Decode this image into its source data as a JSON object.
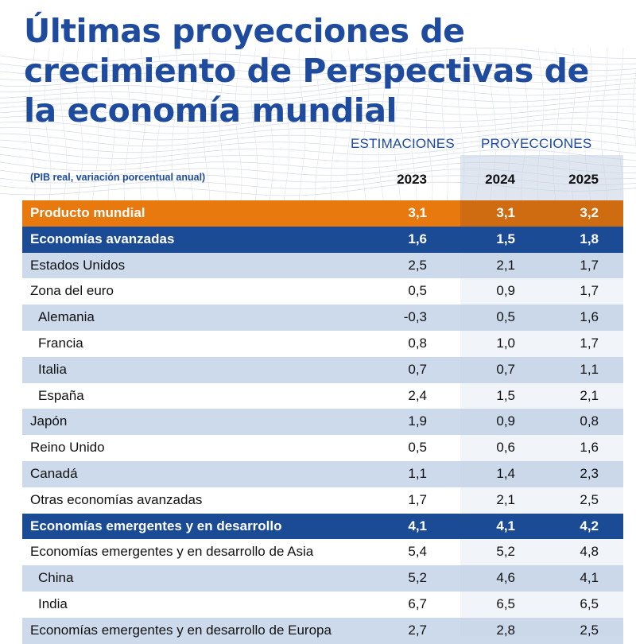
{
  "title": "Últimas proyecciones de crecimiento de Perspectivas de la economía mundial",
  "column_groups": {
    "estimates": "ESTIMACIONES",
    "projections": "PROYECCIONES"
  },
  "units_label": "(PIB real, variación porcentual anual)",
  "colors": {
    "title": "#1e4b9d",
    "world_row": "#e8790e",
    "group_row": "#1b4b95",
    "band": "#c8d6e9"
  },
  "chart_data": {
    "type": "table",
    "title": "Últimas proyecciones de crecimiento de Perspectivas de la economía mundial",
    "subtitle": "(PIB real, variación porcentual anual)",
    "columns": [
      "2023",
      "2024",
      "2025"
    ],
    "rows": [
      {
        "label": "Producto mundial",
        "values": [
          "3,1",
          "3,1",
          "3,2"
        ]
      },
      {
        "label": "Economías avanzadas",
        "values": [
          "1,6",
          "1,5",
          "1,8"
        ]
      },
      {
        "label": "Estados Unidos",
        "values": [
          "2,5",
          "2,1",
          "1,7"
        ]
      },
      {
        "label": "Zona del euro",
        "values": [
          "0,5",
          "0,9",
          "1,7"
        ]
      },
      {
        "label": "Alemania",
        "values": [
          "-0,3",
          "0,5",
          "1,6"
        ]
      },
      {
        "label": "Francia",
        "values": [
          "0,8",
          "1,0",
          "1,7"
        ]
      },
      {
        "label": "Italia",
        "values": [
          "0,7",
          "0,7",
          "1,1"
        ]
      },
      {
        "label": "España",
        "values": [
          "2,4",
          "1,5",
          "2,1"
        ]
      },
      {
        "label": "Japón",
        "values": [
          "1,9",
          "0,9",
          "0,8"
        ]
      },
      {
        "label": "Reino Unido",
        "values": [
          "0,5",
          "0,6",
          "1,6"
        ]
      },
      {
        "label": "Canadá",
        "values": [
          "1,1",
          "1,4",
          "2,3"
        ]
      },
      {
        "label": "Otras economías avanzadas",
        "values": [
          "1,7",
          "2,1",
          "2,5"
        ]
      },
      {
        "label": "Economías emergentes y en desarrollo",
        "values": [
          "4,1",
          "4,1",
          "4,2"
        ]
      },
      {
        "label": "Economías emergentes y en desarrollo de Asia",
        "values": [
          "5,4",
          "5,2",
          "4,8"
        ]
      },
      {
        "label": "China",
        "values": [
          "5,2",
          "4,6",
          "4,1"
        ]
      },
      {
        "label": "India",
        "values": [
          "6,7",
          "6,5",
          "6,5"
        ]
      },
      {
        "label": "Economías emergentes y en desarrollo de Europa",
        "values": [
          "2,7",
          "2,8",
          "2,5"
        ]
      }
    ]
  }
}
